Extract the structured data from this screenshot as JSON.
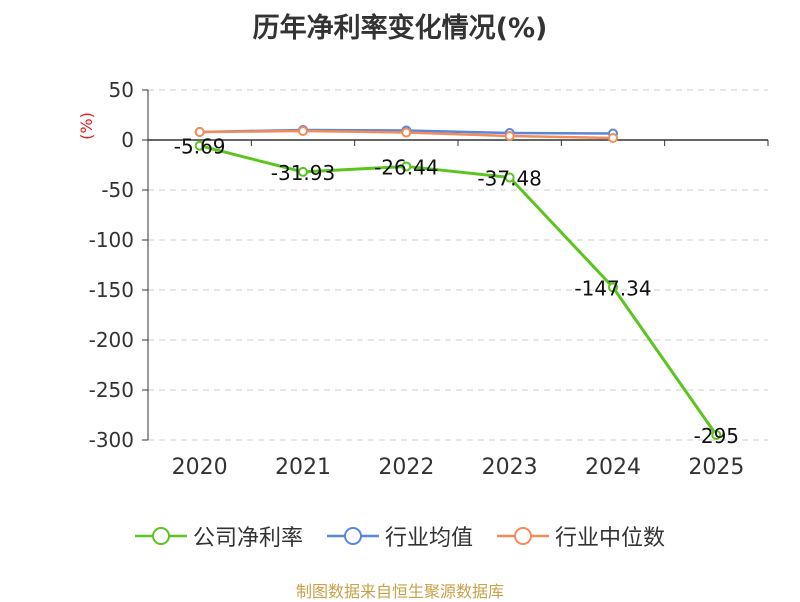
{
  "chart_data": {
    "type": "line",
    "title": "历年净利率变化情况(%)",
    "ylabel": "(%)",
    "ylabel_color": "#e0201c",
    "categories": [
      "2020",
      "2021",
      "2022",
      "2023",
      "2024",
      "2025"
    ],
    "ylim": [
      -300,
      50
    ],
    "yticks": [
      50,
      0,
      -50,
      -100,
      -150,
      -200,
      -250,
      -300
    ],
    "ytick_labels": [
      "50",
      "0",
      "-50",
      "-100",
      "-150",
      "-200",
      "-250",
      "-300"
    ],
    "grid": true,
    "legend_position": "bottom",
    "series": [
      {
        "name": "公司净利率",
        "color": "#5bc41e",
        "values": [
          -5.69,
          -31.93,
          -26.44,
          -37.48,
          -147.34,
          -295
        ],
        "labels": [
          "-5.69",
          "-31.93",
          "-26.44",
          "-37.48",
          "-147.34",
          "-295"
        ]
      },
      {
        "name": "行业均值",
        "color": "#5b86d9",
        "values": [
          8,
          10,
          9.5,
          7,
          6.5,
          null
        ]
      },
      {
        "name": "行业中位数",
        "color": "#f28c5a",
        "values": [
          8,
          9,
          7.5,
          4,
          2,
          null
        ]
      }
    ]
  },
  "source_note": "制图数据来自恒生聚源数据库"
}
